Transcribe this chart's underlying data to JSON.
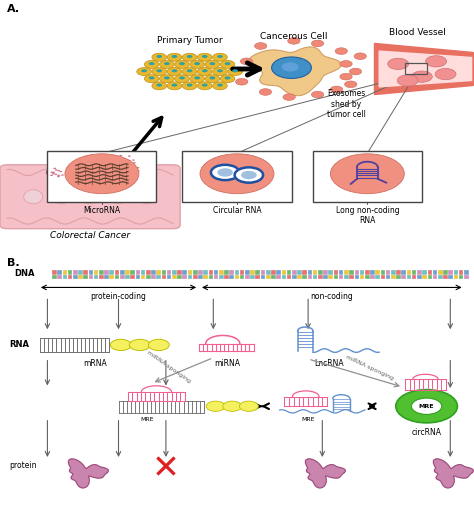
{
  "panel_a_label": "A.",
  "panel_b_label": "B.",
  "texts_a": {
    "primary_tumor": "Primary Tumor",
    "cancerous_cell": "Cancerous Cell",
    "blood_vessel": "Blood Vessel",
    "exosomes": "Exosomes\nshed by\ntumor cell",
    "colorectal": "Colorectal Cancer",
    "microrna": "MicroRNA",
    "circular_rna": "Circular RNA",
    "long_noncoding": "Long non-coding\nRNA"
  },
  "texts_b": {
    "dna": "DNA",
    "rna": "RNA",
    "protein": "protein",
    "protein_coding": "protein-coding",
    "non_coding": "non-coding",
    "mrna": "mRNA",
    "mirna": "miRNA",
    "lncrna": "LncRNA",
    "mre": "MRE",
    "circrna": "circRNA",
    "mirna_sponging1": "miRNA sponging",
    "mirna_sponging2": "miRNA sponging"
  },
  "colors": {
    "hot_pink": "#F06090",
    "salmon": "#F08070",
    "light_salmon": "#FFC0A0",
    "yellow": "#F5F060",
    "green": "#50C030",
    "blue": "#6090D0",
    "light_blue": "#A0C0E8",
    "gold": "#E8B830",
    "gold_dark": "#C09010",
    "skin": "#F5C8A0",
    "skin_dark": "#E0A080",
    "pink_light": "#FFCCCC",
    "red": "#E02020",
    "purple": "#A06080",
    "gray": "#808080",
    "dark_gray": "#555555",
    "black": "#202020",
    "white": "#FFFFFF",
    "tissue_pink": "#F5C0C8",
    "tissue_edge": "#E0A0A8",
    "tumor_dark": "#804060",
    "tumor_mid": "#A05070",
    "vessel_red": "#E87060",
    "vessel_light": "#F5A090",
    "vessel_inner": "#FFDDDD",
    "teal": "#30A0A0",
    "dna_colors": [
      "#E87070",
      "#70A0D0",
      "#E8C840",
      "#70B870",
      "#D090C0",
      "#70C0C0"
    ]
  },
  "background": "#FFFFFF"
}
